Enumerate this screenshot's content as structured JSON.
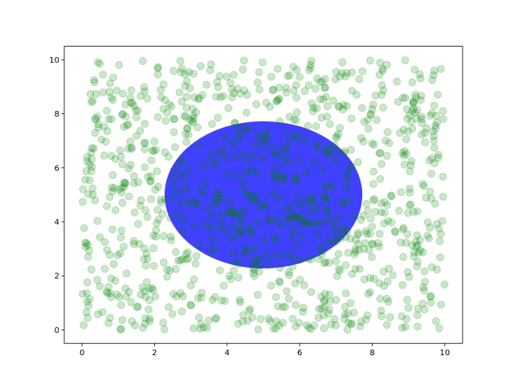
{
  "chart_data": {
    "type": "scatter",
    "title": "",
    "xlabel": "",
    "ylabel": "",
    "xlim": [
      -0.49,
      10.49
    ],
    "ylim": [
      -0.5,
      10.5
    ],
    "x_ticks": [
      "0",
      "2",
      "4",
      "6",
      "8",
      "10"
    ],
    "y_ticks": [
      "0",
      "2",
      "4",
      "6",
      "8",
      "10"
    ],
    "grid": false,
    "scatter": {
      "count": 1000,
      "distribution": "uniform",
      "x_range": [
        0,
        10
      ],
      "y_range": [
        0,
        10
      ],
      "color": "#008000",
      "alpha": 0.2
    },
    "ellipse": {
      "center": [
        5,
        5
      ],
      "width": 5.45,
      "height": 5.45,
      "color": "#0000ff",
      "alpha": 0.75
    }
  }
}
